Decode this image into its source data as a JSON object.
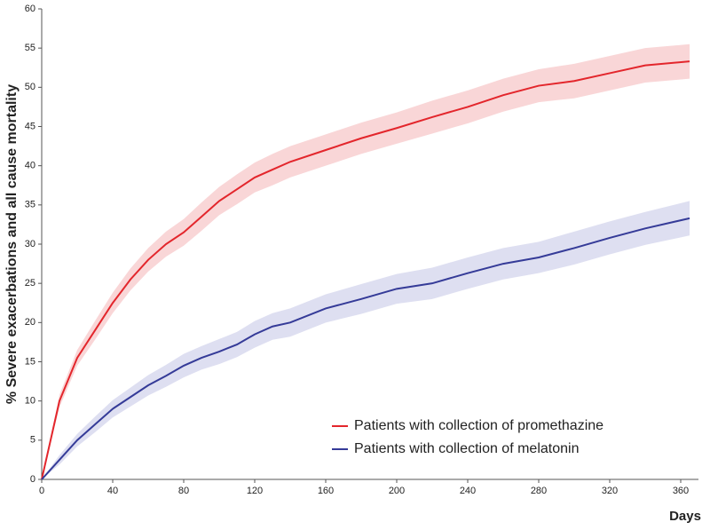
{
  "chart_data": {
    "type": "line",
    "x_label": "Days",
    "y_label": "% Severe exacerbations and all cause mortality",
    "x": [
      0,
      10,
      20,
      30,
      40,
      50,
      60,
      70,
      80,
      90,
      100,
      110,
      120,
      130,
      140,
      160,
      180,
      200,
      220,
      240,
      260,
      280,
      300,
      320,
      340,
      365
    ],
    "series": [
      {
        "name": "Patients with collection of promethazine",
        "color": "#e3262c",
        "band_color": "#f9d6d7",
        "values": [
          0,
          10,
          15.5,
          19,
          22.5,
          25.5,
          28,
          30,
          31.5,
          33.5,
          35.5,
          37,
          38.5,
          39.5,
          40.5,
          42,
          43.5,
          44.8,
          46.2,
          47.5,
          49,
          50.2,
          50.8,
          51.8,
          52.8,
          53.3
        ],
        "lower": [
          0,
          9.2,
          14.5,
          17.8,
          21.2,
          24.1,
          26.5,
          28.4,
          29.8,
          31.7,
          33.7,
          35.1,
          36.6,
          37.5,
          38.5,
          40,
          41.5,
          42.8,
          44.1,
          45.4,
          46.9,
          48.1,
          48.6,
          49.6,
          50.6,
          51.1
        ],
        "upper": [
          0,
          10.8,
          16.5,
          20.2,
          23.8,
          26.9,
          29.5,
          31.6,
          33.2,
          35.3,
          37.3,
          38.9,
          40.4,
          41.5,
          42.5,
          44,
          45.5,
          46.8,
          48.3,
          49.6,
          51.1,
          52.3,
          53,
          54,
          55,
          55.5
        ]
      },
      {
        "name": "Patients with collection of melatonin",
        "color": "#353b98",
        "band_color": "#dedff1",
        "values": [
          0,
          2.5,
          5,
          7,
          9,
          10.5,
          12,
          13.2,
          14.5,
          15.5,
          16.3,
          17.2,
          18.5,
          19.5,
          20,
          21.8,
          23,
          24.3,
          25,
          26.3,
          27.5,
          28.3,
          29.5,
          30.8,
          32,
          33.3
        ],
        "lower": [
          0,
          1.9,
          4.2,
          6,
          7.9,
          9.3,
          10.7,
          11.8,
          13,
          14,
          14.7,
          15.6,
          16.8,
          17.8,
          18.2,
          20,
          21.1,
          22.4,
          23,
          24.3,
          25.5,
          26.3,
          27.4,
          28.7,
          29.9,
          31.1
        ],
        "upper": [
          0,
          3.1,
          5.8,
          8,
          10.1,
          11.7,
          13.3,
          14.6,
          16,
          17,
          17.9,
          18.8,
          20.2,
          21.2,
          21.8,
          23.6,
          24.9,
          26.2,
          27,
          28.3,
          29.5,
          30.3,
          31.6,
          32.9,
          34.1,
          35.5
        ]
      }
    ],
    "xlim": [
      0,
      370
    ],
    "xticks": [
      0,
      40,
      80,
      120,
      160,
      200,
      240,
      280,
      320,
      360
    ],
    "ylim": [
      0,
      60
    ],
    "yticks": [
      0,
      5,
      10,
      15,
      20,
      25,
      30,
      35,
      40,
      45,
      50,
      55,
      60
    ],
    "legend": "lower right"
  }
}
